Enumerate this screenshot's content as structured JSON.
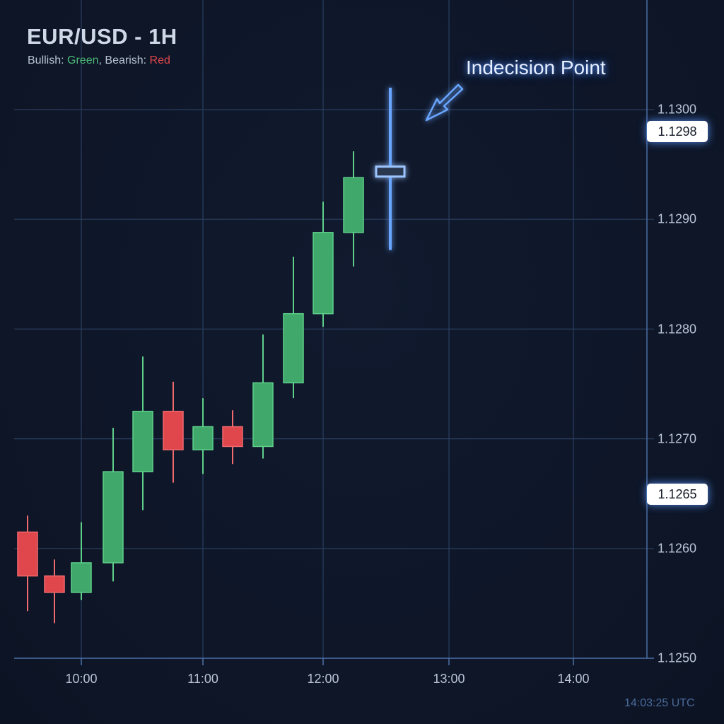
{
  "header": {
    "title": "EUR/USD - 1H",
    "legend_prefix_bull": "Bullish: ",
    "legend_bull_color_name": "Green",
    "legend_sep": ", Bearish: ",
    "legend_bear_color_name": "Red"
  },
  "annotation": {
    "text": "Indecision Point",
    "icon": "arrow-down-left-icon"
  },
  "timestamp": "14:03:25 UTC",
  "colors": {
    "background": "#0e1628",
    "grid": "#2a3f5f",
    "axis": "#4a6fa5",
    "bullish": "#3fa86a",
    "bullish_border": "#5fd08a",
    "bearish": "#e0474c",
    "bearish_border": "#f06a6e",
    "highlight": "#6aa6ff",
    "level_line": "#ffffff"
  },
  "levels": [
    {
      "label": "1.1298",
      "value": 1.1298
    },
    {
      "label": "1.1265",
      "value": 1.1265
    }
  ],
  "chart_data": {
    "type": "candlestick",
    "title": "EUR/USD - 1H",
    "subtitle": "Bullish: Green, Bearish: Red",
    "xlabel": "",
    "ylabel": "",
    "ylim": [
      1.125,
      1.13
    ],
    "yticks": [
      "1.1300",
      "1.1290",
      "1.1280",
      "1.1270",
      "1.1260",
      "1.1250"
    ],
    "xticks": [
      "10:00",
      "11:00",
      "12:00",
      "13:00",
      "14:00"
    ],
    "grid": true,
    "legend_position": "top-left",
    "annotations": [
      {
        "text": "Indecision Point",
        "target_candle_index": 12
      },
      {
        "text": "1.1298",
        "type": "horizontal_level"
      },
      {
        "text": "1.1265",
        "type": "horizontal_level"
      }
    ],
    "candles": [
      {
        "time": "09:30",
        "open": 1.12615,
        "high": 1.1263,
        "low": 1.12543,
        "close": 1.12575,
        "direction": "bearish"
      },
      {
        "time": "09:45",
        "open": 1.12575,
        "high": 1.1259,
        "low": 1.12532,
        "close": 1.1256,
        "direction": "bearish"
      },
      {
        "time": "10:00",
        "open": 1.1256,
        "high": 1.12624,
        "low": 1.12553,
        "close": 1.12587,
        "direction": "bullish"
      },
      {
        "time": "10:15",
        "open": 1.12587,
        "high": 1.1271,
        "low": 1.1257,
        "close": 1.1267,
        "direction": "bullish"
      },
      {
        "time": "10:30",
        "open": 1.1267,
        "high": 1.12775,
        "low": 1.12635,
        "close": 1.12725,
        "direction": "bullish"
      },
      {
        "time": "10:45",
        "open": 1.12725,
        "high": 1.12752,
        "low": 1.1266,
        "close": 1.1269,
        "direction": "bearish"
      },
      {
        "time": "11:00",
        "open": 1.1269,
        "high": 1.12737,
        "low": 1.12668,
        "close": 1.12711,
        "direction": "bullish"
      },
      {
        "time": "11:15",
        "open": 1.12711,
        "high": 1.12726,
        "low": 1.12677,
        "close": 1.12693,
        "direction": "bearish"
      },
      {
        "time": "11:30",
        "open": 1.12693,
        "high": 1.12795,
        "low": 1.12682,
        "close": 1.12751,
        "direction": "bullish"
      },
      {
        "time": "11:45",
        "open": 1.12751,
        "high": 1.12866,
        "low": 1.12737,
        "close": 1.12814,
        "direction": "bullish"
      },
      {
        "time": "12:00",
        "open": 1.12814,
        "high": 1.12916,
        "low": 1.12802,
        "close": 1.12888,
        "direction": "bullish"
      },
      {
        "time": "12:15",
        "open": 1.12888,
        "high": 1.12962,
        "low": 1.12857,
        "close": 1.12938,
        "direction": "bullish"
      },
      {
        "time": "12:30",
        "open": 1.12948,
        "high": 1.1302,
        "low": 1.12872,
        "close": 1.12941,
        "direction": "doji"
      }
    ]
  }
}
